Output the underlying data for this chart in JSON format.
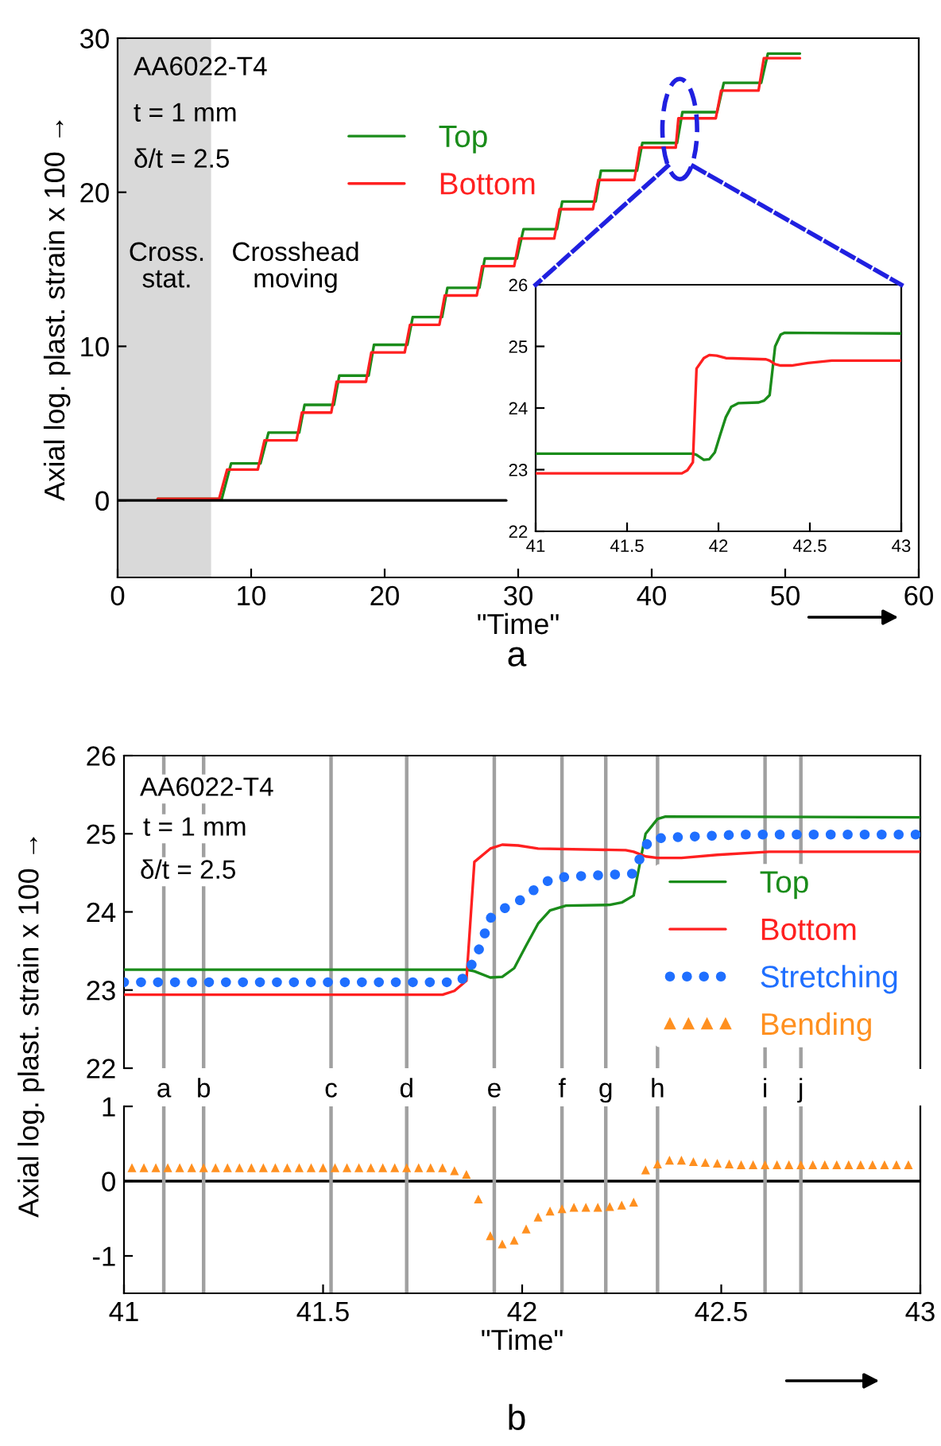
{
  "chart_data": [
    {
      "type": "line",
      "xlabel": "\"Time\"",
      "ylabel": "Axial log. plast. strain x 100 →",
      "xlim": [
        0,
        60
      ],
      "xticks": [
        0,
        10,
        20,
        30,
        40,
        50,
        60
      ],
      "ylim": [
        -5,
        30
      ],
      "yticks": [
        0,
        10,
        20,
        30
      ],
      "legend": "top",
      "grid": false,
      "annotations": [
        "AA6022-T4",
        "t = 1 mm",
        "δ/t = 2.5",
        "Cross.\nstat.",
        "Crosshead\nmoving",
        "a"
      ],
      "bands": [
        {
          "axis": "x",
          "from": 0,
          "to": 7.0,
          "color": "#d9d9d9"
        }
      ],
      "series": [
        {
          "name": "Top",
          "color": "#1a8c1a",
          "x": [
            3,
            7.8,
            8.5,
            10.7,
            11.3,
            13.6,
            14.0,
            16.2,
            16.6,
            18.8,
            19.2,
            21.7,
            22.1,
            24.3,
            24.7,
            27.1,
            27.5,
            29.9,
            30.4,
            32.9,
            33.3,
            35.8,
            36.2,
            38.9,
            39.3,
            41.9,
            42.3,
            44.9,
            45.4,
            48.2,
            48.7,
            51.1
          ],
          "values": [
            0.1,
            0.1,
            2.4,
            2.4,
            4.4,
            4.4,
            6.2,
            6.2,
            8.1,
            8.1,
            10.1,
            10.1,
            11.9,
            11.9,
            13.8,
            13.8,
            15.7,
            15.7,
            17.6,
            17.6,
            19.4,
            19.4,
            21.4,
            21.4,
            23.2,
            23.2,
            25.2,
            25.2,
            27.1,
            27.1,
            29.0,
            29.0
          ]
        },
        {
          "name": "Bottom",
          "color": "#ff2020",
          "x": [
            3,
            7.6,
            8.2,
            10.5,
            11.0,
            13.4,
            13.8,
            16.0,
            16.4,
            18.6,
            19.0,
            21.5,
            21.9,
            24.1,
            24.5,
            26.9,
            27.3,
            29.7,
            30.1,
            32.7,
            33.1,
            35.6,
            36.0,
            38.7,
            39.1,
            41.8,
            42.0,
            44.8,
            45.2,
            48.0,
            48.4,
            51.1
          ],
          "values": [
            0.1,
            0.1,
            2.0,
            2.0,
            3.9,
            3.9,
            5.7,
            5.7,
            7.7,
            7.7,
            9.6,
            9.6,
            11.4,
            11.4,
            13.3,
            13.3,
            15.2,
            15.2,
            17.0,
            17.0,
            18.9,
            18.9,
            20.8,
            20.8,
            22.9,
            22.9,
            24.8,
            24.8,
            26.6,
            26.6,
            28.7,
            28.7
          ]
        },
        {
          "color": "#000000",
          "x": [
            0,
            29.1
          ],
          "values": [
            0,
            0
          ]
        }
      ]
    },
    {
      "type": "line",
      "xlim": [
        41,
        43
      ],
      "xticks": [
        41,
        41.5,
        42,
        42.5,
        43
      ],
      "ylim": [
        22,
        26
      ],
      "yticks": [
        22,
        23,
        24,
        25,
        26
      ],
      "grid": false,
      "series": [
        {
          "color": "#1a8c1a",
          "x": [
            41,
            41.86,
            41.88,
            41.92,
            41.95,
            41.98,
            42.01,
            42.04,
            42.07,
            42.11,
            42.22,
            42.25,
            42.28,
            42.31,
            42.34,
            42.36,
            43
          ],
          "values": [
            23.26,
            23.26,
            23.24,
            23.16,
            23.17,
            23.28,
            23.57,
            23.85,
            24.02,
            24.08,
            24.09,
            24.12,
            24.21,
            25.0,
            25.19,
            25.22,
            25.21
          ]
        },
        {
          "color": "#ff2020",
          "x": [
            41,
            41.8,
            41.83,
            41.86,
            41.88,
            41.92,
            41.95,
            41.99,
            42.04,
            42.26,
            42.28,
            42.31,
            42.34,
            42.4,
            42.49,
            42.62,
            43
          ],
          "values": [
            22.94,
            22.94,
            22.99,
            23.12,
            24.64,
            24.81,
            24.86,
            24.85,
            24.81,
            24.79,
            24.77,
            24.71,
            24.69,
            24.69,
            24.73,
            24.77,
            24.77
          ]
        }
      ]
    },
    {
      "type": "line",
      "ylabel": "Axial log. plast. strain x 100 →",
      "xlim": [
        41,
        43
      ],
      "ylim": [
        22,
        26
      ],
      "yticks": [
        22,
        23,
        24,
        25,
        26
      ],
      "tick_labels": "y",
      "legend": "right",
      "grid": false,
      "annotations": [
        "AA6022-T4",
        "t = 1 mm",
        "δ/t = 2.5"
      ],
      "ref_lines": [
        {
          "axis": "x",
          "value": 41.1,
          "color": "#a0a0a0"
        },
        {
          "axis": "x",
          "value": 41.2,
          "color": "#a0a0a0"
        },
        {
          "axis": "x",
          "value": 41.52,
          "color": "#a0a0a0"
        },
        {
          "axis": "x",
          "value": 41.71,
          "color": "#a0a0a0"
        },
        {
          "axis": "x",
          "value": 41.93,
          "color": "#a0a0a0"
        },
        {
          "axis": "x",
          "value": 42.1,
          "color": "#a0a0a0"
        },
        {
          "axis": "x",
          "value": 42.21,
          "color": "#a0a0a0"
        },
        {
          "axis": "x",
          "value": 42.34,
          "color": "#a0a0a0"
        },
        {
          "axis": "x",
          "value": 42.61,
          "color": "#a0a0a0"
        },
        {
          "axis": "x",
          "value": 42.7,
          "color": "#a0a0a0"
        }
      ],
      "series": [
        {
          "name": "Top",
          "color": "#1a8c1a",
          "x": [
            41,
            41.86,
            41.88,
            41.92,
            41.95,
            41.98,
            42.01,
            42.04,
            42.07,
            42.11,
            42.22,
            42.25,
            42.28,
            42.31,
            42.34,
            42.36,
            43
          ],
          "values": [
            23.26,
            23.26,
            23.24,
            23.16,
            23.17,
            23.28,
            23.57,
            23.85,
            24.02,
            24.08,
            24.09,
            24.12,
            24.21,
            25.0,
            25.19,
            25.22,
            25.21
          ]
        },
        {
          "name": "Bottom",
          "color": "#ff2020",
          "x": [
            41,
            41.8,
            41.83,
            41.86,
            41.88,
            41.92,
            41.95,
            41.99,
            42.04,
            42.26,
            42.28,
            42.31,
            42.34,
            42.4,
            42.49,
            42.62,
            43
          ],
          "values": [
            22.94,
            22.94,
            22.99,
            23.12,
            24.64,
            24.81,
            24.86,
            24.85,
            24.81,
            24.79,
            24.77,
            24.71,
            24.69,
            24.69,
            24.73,
            24.77,
            24.77
          ]
        },
        {
          "name": "Stretching",
          "color": "#1f6fff",
          "line_style": "dotted",
          "x": [
            41,
            41.84,
            41.86,
            41.89,
            41.92,
            41.96,
            42.01,
            42.04,
            42.07,
            42.11,
            42.28,
            42.3,
            42.32,
            42.36,
            42.55,
            43
          ],
          "values": [
            23.1,
            23.1,
            23.19,
            23.5,
            23.92,
            24.06,
            24.19,
            24.33,
            24.41,
            24.45,
            24.49,
            24.74,
            24.93,
            24.95,
            24.99,
            24.99
          ]
        }
      ]
    },
    {
      "type": "scatter",
      "xlabel": "\"Time\"",
      "xlim": [
        41,
        43
      ],
      "xticks": [
        41,
        41.5,
        42,
        42.5,
        43
      ],
      "ylim": [
        -1.5,
        1
      ],
      "yticks": [
        -1,
        0,
        1
      ],
      "marker": "triangle",
      "grid": false,
      "annotations": [
        "b"
      ],
      "ref_lines": [
        {
          "axis": "y",
          "value": 0,
          "color": "#000000"
        },
        {
          "axis": "x",
          "value": 41.1,
          "label": "a",
          "color": "#a0a0a0"
        },
        {
          "axis": "x",
          "value": 41.2,
          "label": "b",
          "color": "#a0a0a0"
        },
        {
          "axis": "x",
          "value": 41.52,
          "label": "c",
          "color": "#a0a0a0"
        },
        {
          "axis": "x",
          "value": 41.71,
          "label": "d",
          "color": "#a0a0a0"
        },
        {
          "axis": "x",
          "value": 41.93,
          "label": "e",
          "color": "#a0a0a0"
        },
        {
          "axis": "x",
          "value": 42.1,
          "label": "f",
          "color": "#a0a0a0"
        },
        {
          "axis": "x",
          "value": 42.21,
          "label": "g",
          "color": "#a0a0a0"
        },
        {
          "axis": "x",
          "value": 42.34,
          "label": "h",
          "color": "#a0a0a0"
        },
        {
          "axis": "x",
          "value": 42.61,
          "label": "i",
          "color": "#a0a0a0"
        },
        {
          "axis": "x",
          "value": 42.7,
          "label": "j",
          "color": "#a0a0a0"
        }
      ],
      "series": [
        {
          "name": "Bending",
          "color": "#ff9020",
          "x": [
            41.02,
            41.05,
            41.08,
            41.11,
            41.14,
            41.17,
            41.2,
            41.23,
            41.26,
            41.29,
            41.32,
            41.35,
            41.38,
            41.41,
            41.44,
            41.47,
            41.5,
            41.53,
            41.56,
            41.59,
            41.62,
            41.65,
            41.68,
            41.71,
            41.74,
            41.77,
            41.8,
            41.83,
            41.86,
            41.89,
            41.92,
            41.95,
            41.98,
            42.01,
            42.04,
            42.07,
            42.1,
            42.13,
            42.16,
            42.19,
            42.22,
            42.25,
            42.28,
            42.31,
            42.34,
            42.37,
            42.4,
            42.43,
            42.46,
            42.49,
            42.52,
            42.55,
            42.58,
            42.61,
            42.64,
            42.67,
            42.7,
            42.73,
            42.76,
            42.79,
            42.82,
            42.85,
            42.88,
            42.91,
            42.94,
            42.97
          ],
          "values": [
            0.18,
            0.18,
            0.18,
            0.18,
            0.18,
            0.18,
            0.18,
            0.18,
            0.18,
            0.18,
            0.18,
            0.18,
            0.18,
            0.18,
            0.18,
            0.18,
            0.18,
            0.18,
            0.18,
            0.18,
            0.18,
            0.18,
            0.18,
            0.18,
            0.18,
            0.18,
            0.18,
            0.14,
            0.09,
            -0.24,
            -0.73,
            -0.84,
            -0.79,
            -0.64,
            -0.48,
            -0.4,
            -0.37,
            -0.35,
            -0.35,
            -0.35,
            -0.34,
            -0.32,
            -0.28,
            0.15,
            0.23,
            0.28,
            0.28,
            0.26,
            0.25,
            0.24,
            0.23,
            0.22,
            0.22,
            0.22,
            0.22,
            0.22,
            0.22,
            0.22,
            0.22,
            0.22,
            0.22,
            0.22,
            0.22,
            0.22,
            0.22,
            0.22
          ]
        }
      ]
    }
  ]
}
